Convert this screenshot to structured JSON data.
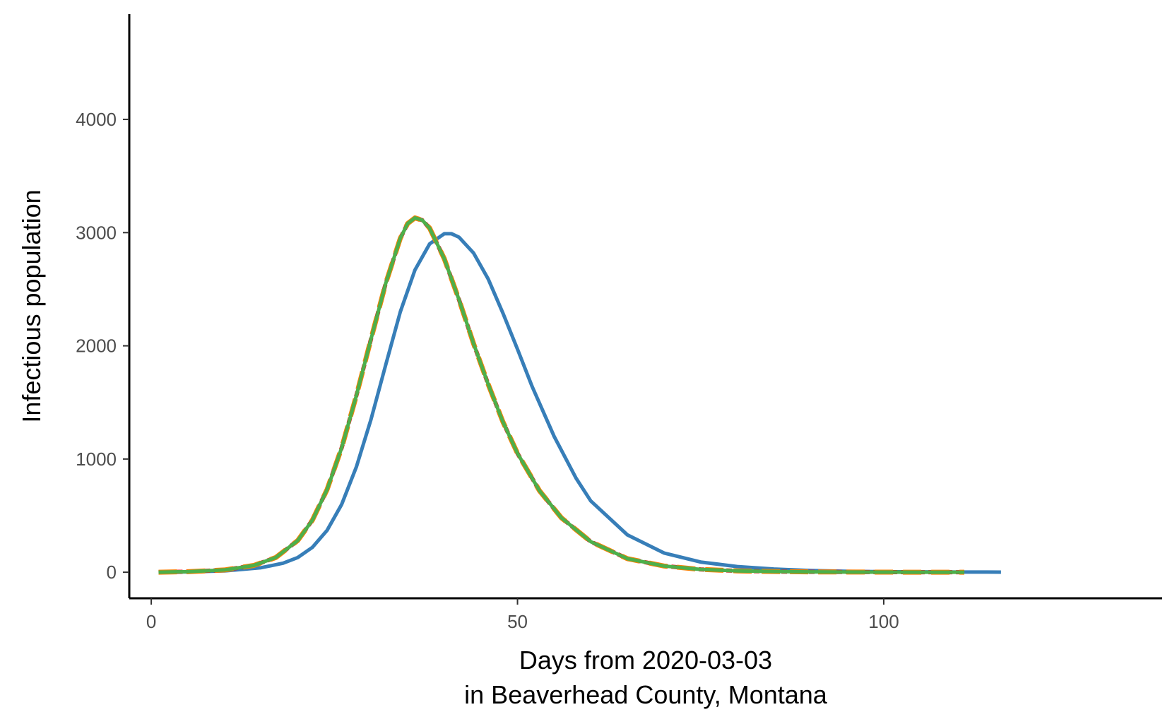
{
  "chart_data": {
    "type": "line",
    "title": "",
    "xlabel_line1": "Days from 2020-03-03",
    "xlabel_line2": "in Beaverhead County, Montana",
    "ylabel": "Infectious population",
    "xlim": [
      -3,
      138
    ],
    "ylim": [
      -230,
      4930
    ],
    "x_ticks": [
      0,
      50,
      100
    ],
    "x_tick_labels": [
      "0",
      "50",
      "100"
    ],
    "y_ticks": [
      0,
      1000,
      2000,
      3000,
      4000
    ],
    "y_tick_labels": [
      "0",
      "1000",
      "2000",
      "3000",
      "4000"
    ],
    "grid": false,
    "legend": "none",
    "series": [
      {
        "color": "#377eb8",
        "dash": "solid",
        "x": [
          1,
          5,
          10,
          15,
          18,
          20,
          22,
          24,
          26,
          28,
          30,
          32,
          34,
          36,
          38,
          40,
          41,
          42,
          44,
          46,
          48,
          50,
          52,
          55,
          58,
          60,
          65,
          70,
          75,
          80,
          85,
          90,
          95,
          100,
          105,
          110,
          116
        ],
        "y": [
          0,
          3,
          12,
          40,
          80,
          130,
          220,
          370,
          600,
          930,
          1350,
          1830,
          2300,
          2670,
          2900,
          2990,
          2990,
          2960,
          2820,
          2590,
          2290,
          1970,
          1640,
          1200,
          830,
          630,
          330,
          170,
          90,
          50,
          28,
          15,
          8,
          5,
          3,
          2,
          1
        ]
      },
      {
        "color": "#e41a1c",
        "dash": "8,5",
        "x": [
          1,
          5,
          10,
          14,
          17,
          20,
          22,
          24,
          26,
          28,
          30,
          32,
          34,
          35,
          36,
          37,
          38,
          40,
          42,
          44,
          46,
          48,
          50,
          53,
          56,
          60,
          65,
          70,
          75,
          80,
          85,
          90,
          95,
          100,
          105,
          111
        ],
        "y": [
          0,
          5,
          20,
          60,
          130,
          280,
          460,
          730,
          1100,
          1560,
          2060,
          2550,
          2950,
          3080,
          3130,
          3110,
          3040,
          2770,
          2410,
          2020,
          1660,
          1330,
          1050,
          720,
          480,
          270,
          120,
          55,
          25,
          12,
          6,
          3,
          2,
          1,
          0,
          0
        ]
      },
      {
        "color": "#ff7f00",
        "dash": "26,14",
        "x": [
          1,
          5,
          10,
          14,
          17,
          20,
          22,
          24,
          26,
          28,
          30,
          32,
          34,
          35,
          36,
          37,
          38,
          40,
          42,
          44,
          46,
          48,
          50,
          53,
          56,
          60,
          65,
          70,
          75,
          80,
          85,
          90,
          95,
          100,
          105,
          111
        ],
        "y": [
          0,
          5,
          20,
          60,
          130,
          280,
          460,
          730,
          1100,
          1560,
          2060,
          2550,
          2950,
          3080,
          3130,
          3110,
          3040,
          2770,
          2410,
          2020,
          1660,
          1330,
          1050,
          720,
          480,
          270,
          120,
          55,
          25,
          12,
          6,
          3,
          2,
          1,
          0,
          0
        ]
      },
      {
        "color": "#4daf4a",
        "dash": "solid",
        "x": [
          1,
          5,
          10,
          14,
          17,
          20,
          22,
          24,
          26,
          28,
          30,
          32,
          34,
          35,
          36,
          37,
          38,
          40,
          42,
          44,
          46,
          48,
          50,
          53,
          56,
          60,
          65,
          70,
          75,
          80,
          85,
          90,
          95,
          100,
          105,
          111
        ],
        "y": [
          0,
          5,
          20,
          60,
          130,
          280,
          460,
          730,
          1100,
          1560,
          2060,
          2550,
          2950,
          3080,
          3130,
          3110,
          3040,
          2770,
          2410,
          2020,
          1660,
          1330,
          1050,
          720,
          480,
          270,
          120,
          55,
          25,
          12,
          6,
          3,
          2,
          1,
          0,
          0
        ]
      }
    ]
  }
}
